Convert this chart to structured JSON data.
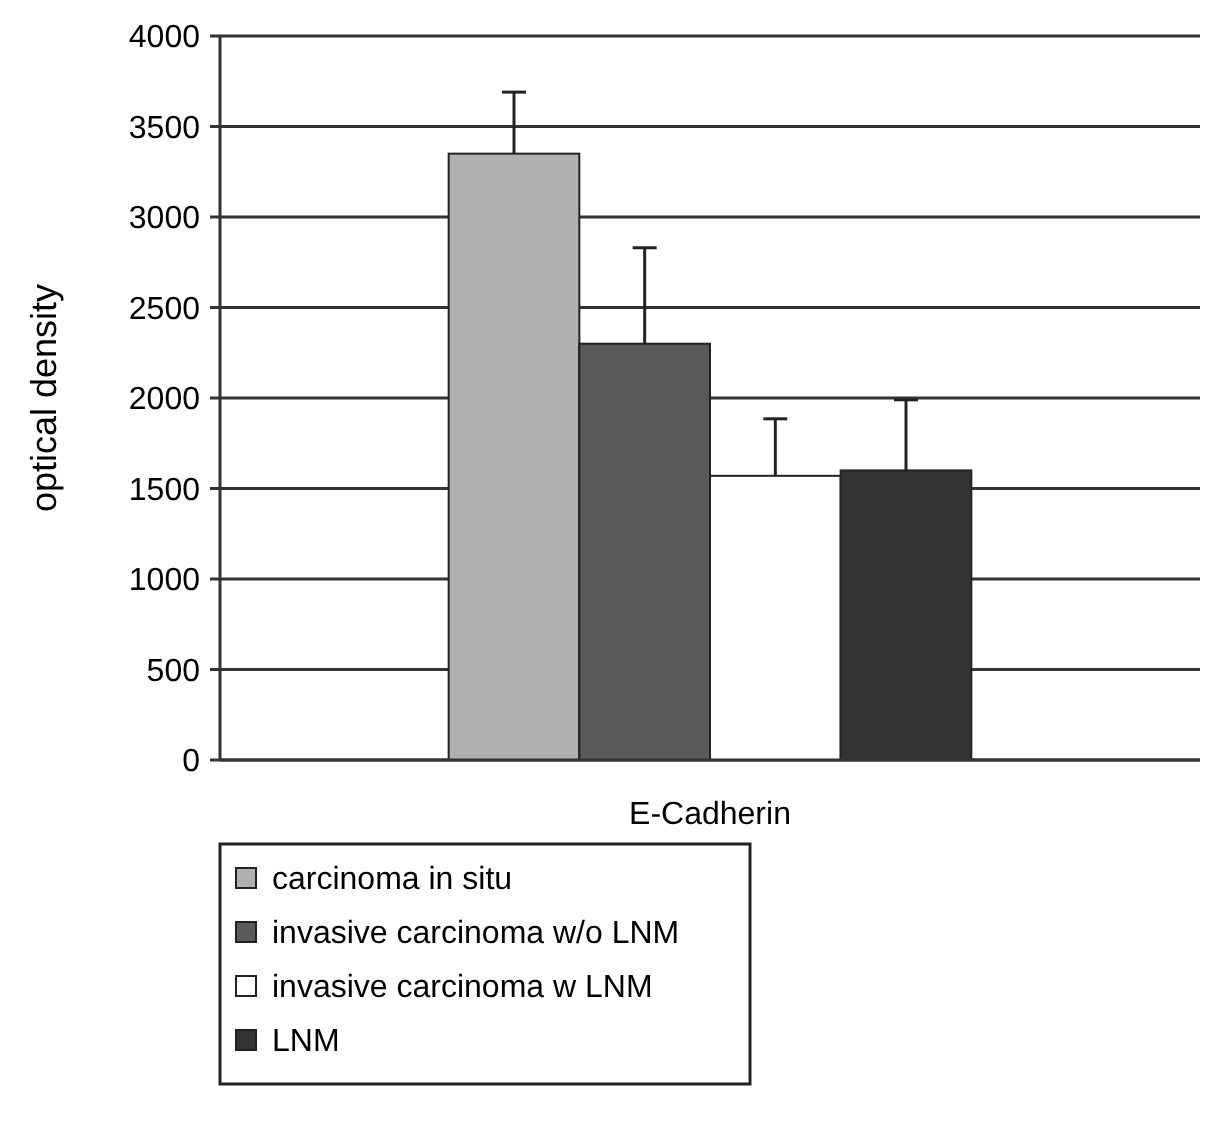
{
  "chart_data": {
    "type": "bar",
    "categories": [
      "E-Cadherin"
    ],
    "ylabel": "optical density",
    "ylim": [
      0,
      4000
    ],
    "yticks": [
      0,
      500,
      1000,
      1500,
      2000,
      2500,
      3000,
      3500,
      4000
    ],
    "grid": "y",
    "legend": "bottom",
    "series": [
      {
        "name": "carcinoma in situ",
        "color": "#b0b0b0",
        "values": [
          3350
        ],
        "errors": [
          340
        ]
      },
      {
        "name": "invasive carcinoma w/o LNM",
        "color": "#5a5a5a",
        "values": [
          2300
        ],
        "errors": [
          530
        ]
      },
      {
        "name": "invasive carcinoma w LNM",
        "color": "#ffffff",
        "values": [
          1570
        ],
        "errors": [
          315
        ]
      },
      {
        "name": "LNM",
        "color": "#333333",
        "values": [
          1600
        ],
        "errors": [
          390
        ]
      }
    ]
  }
}
